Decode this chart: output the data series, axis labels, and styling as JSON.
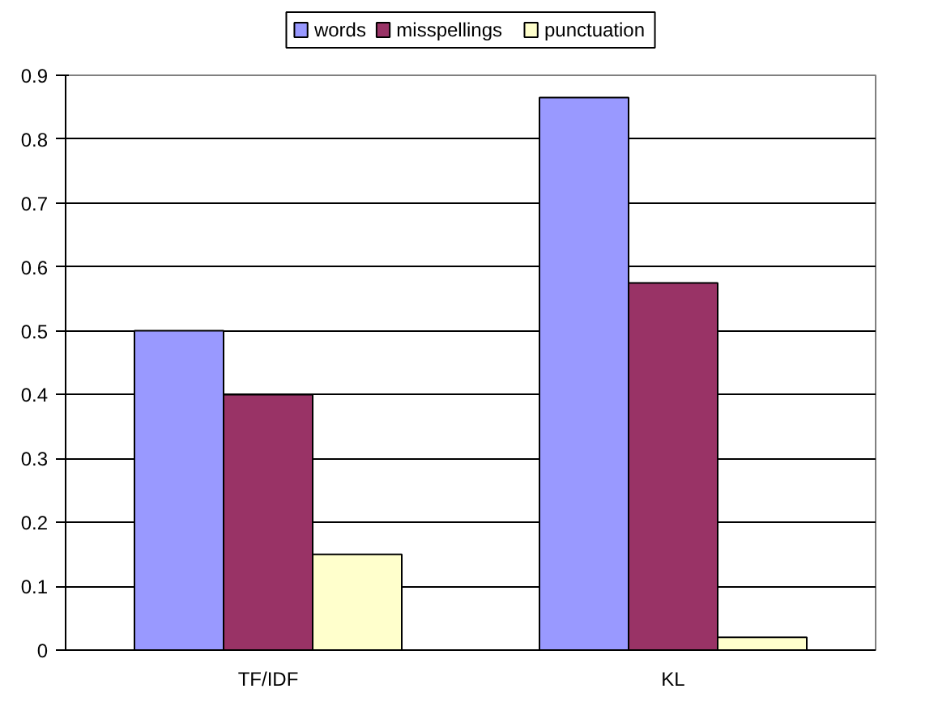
{
  "chart_data": {
    "type": "bar",
    "categories": [
      "TF/IDF",
      "KL"
    ],
    "series": [
      {
        "name": "words",
        "color": "#9999ff",
        "values": [
          0.5,
          0.865
        ]
      },
      {
        "name": "misspellings",
        "color": "#993366",
        "values": [
          0.4,
          0.575
        ]
      },
      {
        "name": "punctuation",
        "color": "#ffffcc",
        "values": [
          0.15,
          0.02
        ]
      }
    ],
    "ylim": [
      0,
      0.9
    ],
    "yticks": [
      0,
      0.1,
      0.2,
      0.3,
      0.4,
      0.5,
      0.6,
      0.7,
      0.8,
      0.9
    ],
    "grid": "y",
    "legend": "top"
  }
}
